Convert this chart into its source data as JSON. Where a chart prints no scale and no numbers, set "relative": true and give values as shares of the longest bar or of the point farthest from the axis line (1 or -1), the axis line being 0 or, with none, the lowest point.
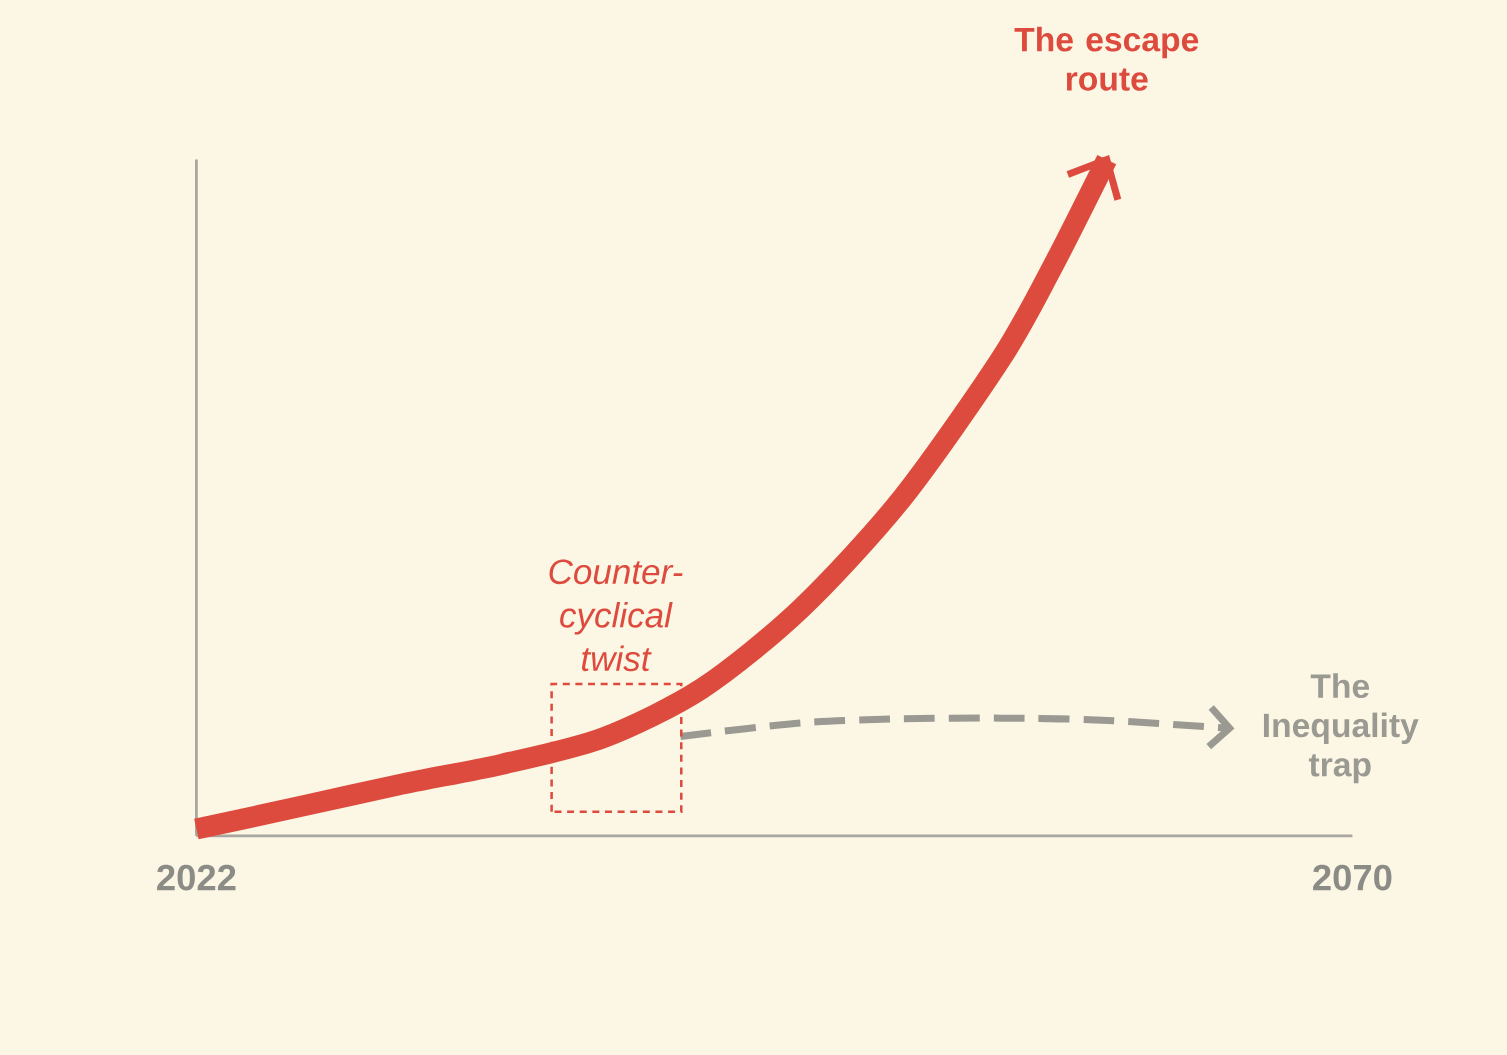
{
  "chart_data": {
    "type": "line",
    "relative": true,
    "xlim": [
      2022,
      2070
    ],
    "xticks": [
      2022,
      2070
    ],
    "marker": "none",
    "annotations": [
      {
        "text": "Counter-cyclical twist",
        "x": 2039.4,
        "y": 0.13
      }
    ],
    "series": [
      {
        "name": "The escape route",
        "color": "#dd4b3e",
        "x": [
          2022,
          2026.4,
          2030.6,
          2034.7,
          2038.9,
          2043.0,
          2047.1,
          2051.3,
          2055.4,
          2057.5,
          2059.8
        ],
        "values": [
          0.01,
          0.044,
          0.077,
          0.106,
          0.145,
          0.218,
          0.336,
          0.499,
          0.705,
          0.838,
          1.0
        ]
      },
      {
        "name": "The Inequality trap",
        "color": "#9a9a93",
        "line_style": "dashed",
        "x": [
          2042.1,
          2047.1,
          2051.3,
          2055.4,
          2059.6,
          2064.9
        ],
        "values": [
          0.147,
          0.167,
          0.173,
          0.174,
          0.171,
          0.159
        ]
      }
    ]
  }
}
